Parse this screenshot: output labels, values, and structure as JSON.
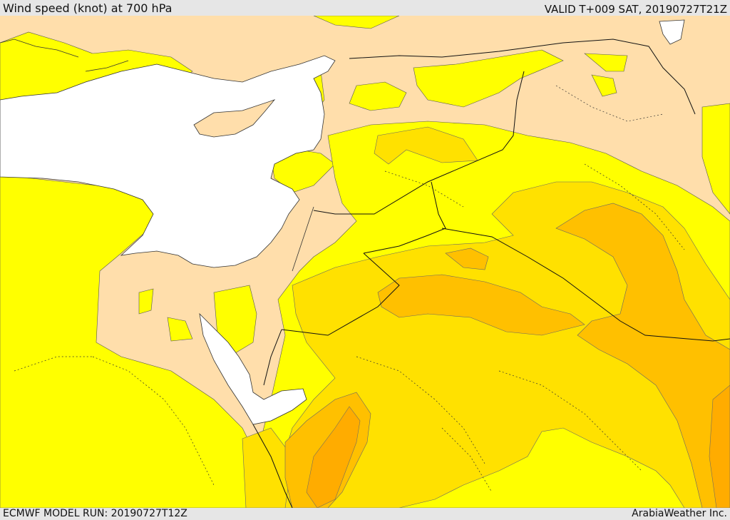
{
  "header": {
    "title": "Wind speed (knot) at 700 hPa",
    "valid": "VALID T+009 SAT, 20190727T21Z"
  },
  "footer": {
    "model_run": "ECMWF MODEL RUN: 20190727T12Z",
    "credit": "ArabiaWeather Inc."
  },
  "colors": {
    "land_calm": "#ffdeab",
    "band_low": "#ffff00",
    "band_mid": "#ffe100",
    "band_high": "#ffc000",
    "band_max": "#ffaa00",
    "sea": "#ffffff",
    "border": "#000000"
  }
}
